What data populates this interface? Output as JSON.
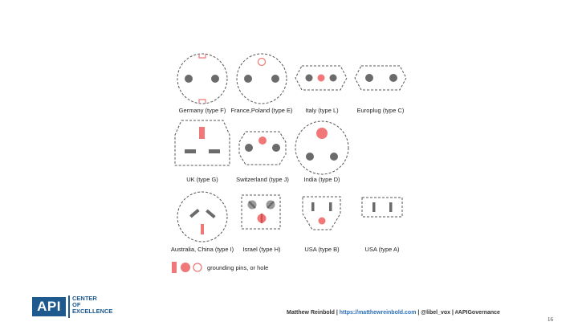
{
  "plugs": [
    {
      "id": "type-f",
      "label": "Germany (type F)"
    },
    {
      "id": "type-e",
      "label": "France,Poland (type E)"
    },
    {
      "id": "type-l",
      "label": "Italy (type L)"
    },
    {
      "id": "type-c",
      "label": "Europlug (type C)"
    },
    {
      "id": "type-g",
      "label": "UK (type G)"
    },
    {
      "id": "type-j",
      "label": "Switzerland (type J)"
    },
    {
      "id": "type-d",
      "label": "India (type D)"
    },
    {
      "id": "type-i",
      "label": "Australia, China (type I)"
    },
    {
      "id": "type-h",
      "label": "Israel (type H)"
    },
    {
      "id": "type-b",
      "label": "USA (type B)"
    },
    {
      "id": "type-a",
      "label": "USA (type A)"
    }
  ],
  "legend": {
    "text": "grounding pins, or hole"
  },
  "footer": {
    "author": "Matthew Reinbold |",
    "url": "https://matthewreinbold.com",
    "rest": "| @libel_vox | #APIGovernance",
    "page_number": "16"
  },
  "logo": {
    "mark": "API",
    "line1": "CENTER",
    "line2": "OF",
    "line3": "EXCELLENCE"
  },
  "colors": {
    "pin": "#6b6b6b",
    "ground": "#f07878",
    "outline": "#555555"
  }
}
